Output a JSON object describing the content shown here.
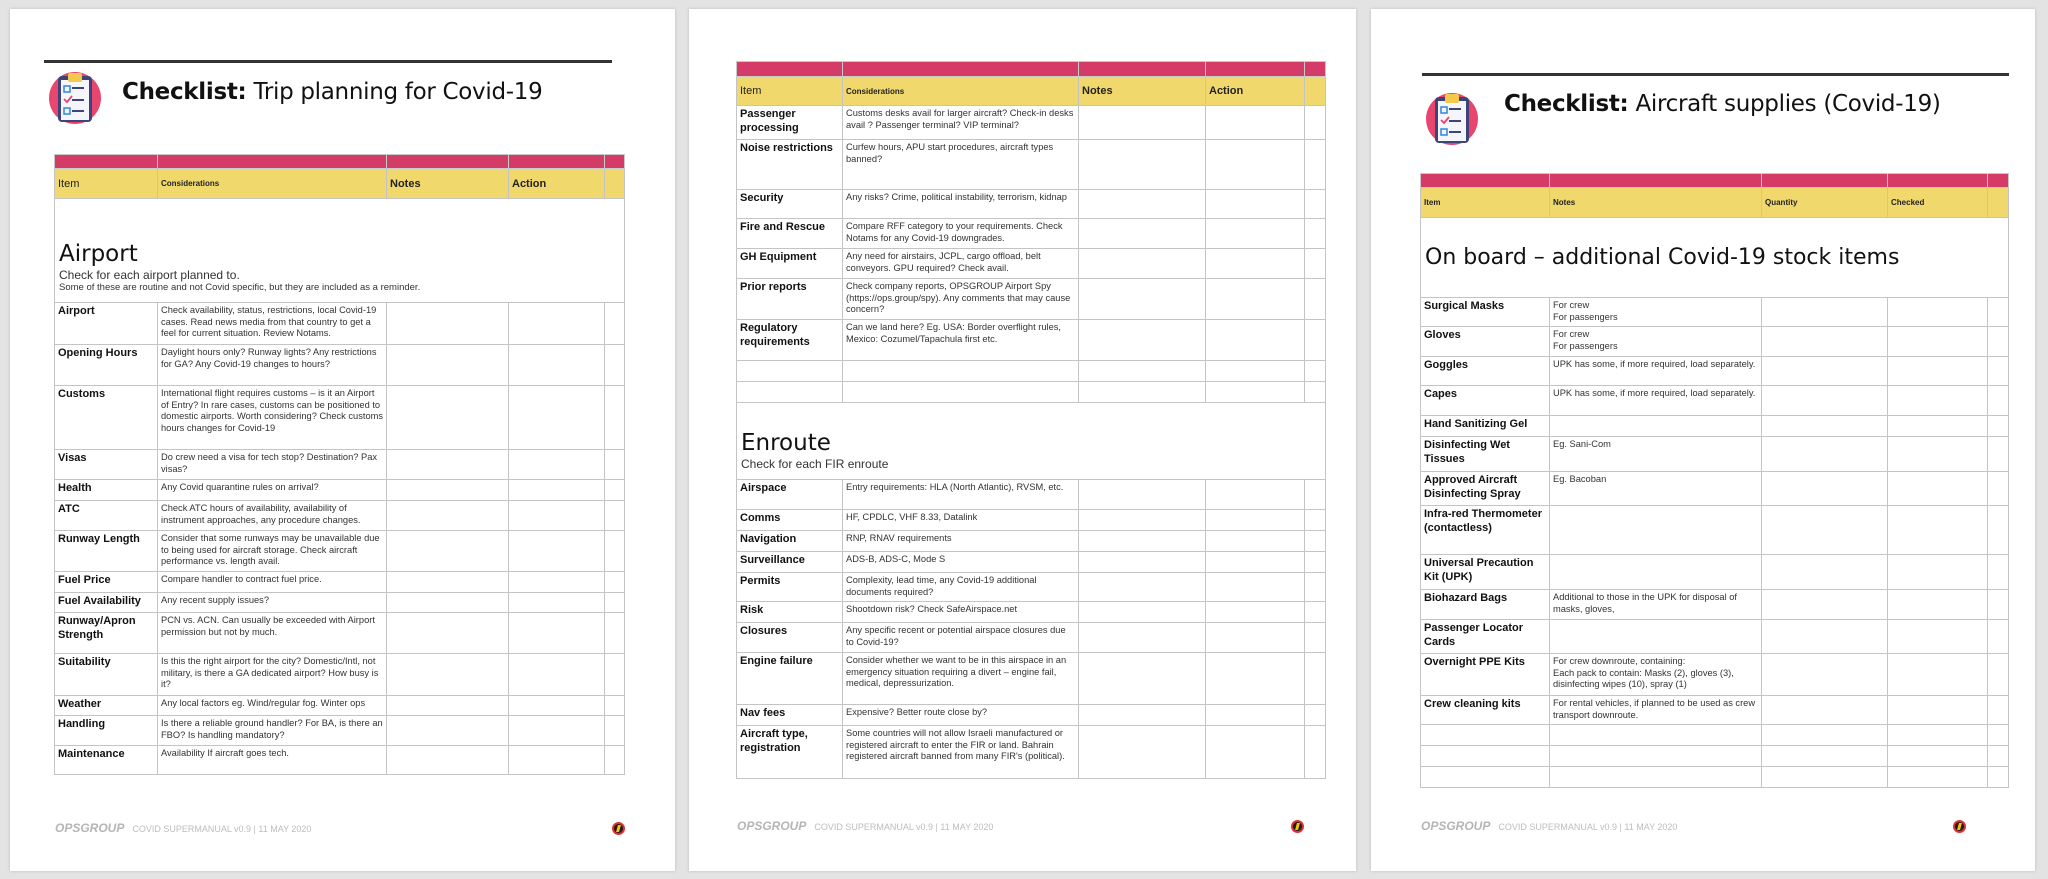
{
  "colors": {
    "header_pink": "#d43b66",
    "header_yellow": "#f1d86c",
    "background": "#e3e3e3"
  },
  "footer": {
    "brand": "OPSGROUP",
    "text": "COVID SUPERMANUAL v0.9 | 11 MAY 2020",
    "icon": "opsgroup-bolt-icon"
  },
  "pages": [
    {
      "title_bold": "Checklist:",
      "title_rest": " Trip planning for Covid-19",
      "icon": "clipboard-checklist-icon",
      "headers": [
        "Item",
        "Considerations",
        "Notes",
        "Action",
        ""
      ],
      "blocks": [
        {
          "type": "section",
          "heading": "Airport",
          "sub": "Check for each airport planned to.",
          "sub2": "Some of these are routine and not Covid specific, but they are included as a reminder."
        },
        {
          "type": "row",
          "item": "Airport",
          "text": "Check availability, status, restrictions, local Covid-19 cases. Read news media from that country to get a feel for current situation. Review Notams."
        },
        {
          "type": "row",
          "item": "Opening Hours",
          "text": "Daylight hours only? Runway lights? Any restrictions for GA? Any Covid-19 changes to hours?"
        },
        {
          "type": "row",
          "item": "Customs",
          "text": "International flight requires customs – is it an Airport of Entry? In rare cases, customs can be positioned to domestic airports. Worth considering? Check customs hours changes for Covid-19"
        },
        {
          "type": "row",
          "item": "Visas",
          "text": "Do crew need a visa for tech stop? Destination? Pax visas?"
        },
        {
          "type": "row",
          "item": "Health",
          "text": "Any Covid quarantine rules on arrival?"
        },
        {
          "type": "row",
          "item": "ATC",
          "text": "Check ATC hours of availability, availability of instrument approaches, any procedure changes."
        },
        {
          "type": "row",
          "item": "Runway Length",
          "text": "Consider that some runways may be unavailable due to being used for aircraft storage. Check aircraft performance vs. length avail."
        },
        {
          "type": "row",
          "item": "Fuel Price",
          "text": "Compare handler to contract fuel price."
        },
        {
          "type": "row",
          "item": "Fuel Availability",
          "text": "Any recent supply issues?"
        },
        {
          "type": "row",
          "item": "Runway/Apron Strength",
          "text": "PCN vs. ACN. Can usually be exceeded with Airport permission but not by much."
        },
        {
          "type": "row",
          "item": "Suitability",
          "text": "Is this the right airport for the city? Domestic/Intl, not military, is there a GA dedicated airport? How busy is it?"
        },
        {
          "type": "row",
          "item": "Weather",
          "text": "Any local factors eg. Wind/regular fog. Winter ops"
        },
        {
          "type": "row",
          "item": "Handling",
          "text": "Is there a reliable ground handler? For BA, is there an FBO? Is handling mandatory?"
        },
        {
          "type": "row",
          "item": "Maintenance",
          "text": "Availability If aircraft goes tech."
        }
      ]
    },
    {
      "title_bold": "",
      "title_rest": "",
      "headers": [
        "Item",
        "Considerations",
        "Notes",
        "Action",
        ""
      ],
      "blocks": [
        {
          "type": "row",
          "item": "Passenger processing",
          "text": "Customs desks avail for larger aircraft? Check-in desks avail ? Passenger terminal? VIP terminal?"
        },
        {
          "type": "row",
          "item": "Noise restrictions",
          "text": "Curfew hours, APU start procedures, aircraft types banned?"
        },
        {
          "type": "row",
          "item": "Security",
          "text": "Any risks? Crime, political instability, terrorism, kidnap"
        },
        {
          "type": "row",
          "item": "Fire and Rescue",
          "text": "Compare RFF category to your requirements. Check Notams for any Covid-19 downgrades."
        },
        {
          "type": "row",
          "item": "GH Equipment",
          "text": "Any need for airstairs, JCPL, cargo offload, belt conveyors. GPU required? Check avail."
        },
        {
          "type": "row",
          "item": "Prior reports",
          "text": "Check company reports, OPSGROUP Airport Spy (https://ops.group/spy). Any comments that may cause concern?"
        },
        {
          "type": "row",
          "item": "Regulatory requirements",
          "text": "Can we land here? Eg. USA: Border overflight rules, Mexico: Cozumel/Tapachula first etc."
        },
        {
          "type": "row",
          "item": "",
          "text": ""
        },
        {
          "type": "row",
          "item": "",
          "text": ""
        },
        {
          "type": "section",
          "heading": "Enroute",
          "sub": "Check for each FIR enroute",
          "sub2": ""
        },
        {
          "type": "row",
          "item": "Airspace",
          "text": "Entry  requirements: HLA (North Atlantic), RVSM, etc."
        },
        {
          "type": "row",
          "item": "Comms",
          "text": "HF, CPDLC, VHF 8.33, Datalink"
        },
        {
          "type": "row",
          "item": "Navigation",
          "text": "RNP, RNAV requirements"
        },
        {
          "type": "row",
          "item": "Surveillance",
          "text": "ADS-B, ADS-C, Mode S"
        },
        {
          "type": "row",
          "item": "Permits",
          "text": "Complexity, lead time, any Covid-19 additional documents required?"
        },
        {
          "type": "row",
          "item": "Risk",
          "text": "Shootdown risk? Check SafeAirspace.net"
        },
        {
          "type": "row",
          "item": "Closures",
          "text": "Any specific recent or potential airspace closures due to Covid-19?"
        },
        {
          "type": "row",
          "item": "Engine failure",
          "text": "Consider whether we want to be in this airspace in an emergency situation requiring a divert – engine fail, medical, depressurization."
        },
        {
          "type": "row",
          "item": "Nav fees",
          "text": "Expensive? Better route close by?"
        },
        {
          "type": "row",
          "item": "Aircraft type, registration",
          "text": "Some countries will not allow Israeli manufactured or registered aircraft to enter the FIR or land. Bahrain registered aircraft banned from many FIR's (political)."
        }
      ]
    },
    {
      "title_bold": "Checklist:",
      "title_rest": " Aircraft supplies (Covid-19)",
      "icon": "clipboard-checklist-icon",
      "headers": [
        "Item",
        "Notes",
        "Quantity",
        "Checked",
        ""
      ],
      "blocks": [
        {
          "type": "section",
          "heading": "On board – additional Covid-19 stock items",
          "sub": "",
          "sub2": ""
        },
        {
          "type": "row",
          "item": "Surgical Masks",
          "text": "For crew\nFor passengers"
        },
        {
          "type": "row",
          "item": "Gloves",
          "text": "For crew\nFor passengers"
        },
        {
          "type": "row",
          "item": "Goggles",
          "text": "UPK has some, if more required, load separately."
        },
        {
          "type": "row",
          "item": "Capes",
          "text": "UPK has some, if more required, load separately."
        },
        {
          "type": "row",
          "item": "Hand Sanitizing Gel",
          "text": ""
        },
        {
          "type": "row",
          "item": "Disinfecting Wet Tissues",
          "text": "Eg. Sani-Com"
        },
        {
          "type": "row",
          "item": "Approved Aircraft Disinfecting Spray",
          "text": "Eg. Bacoban"
        },
        {
          "type": "row",
          "item": "Infra-red Thermometer (contactless)",
          "text": ""
        },
        {
          "type": "row",
          "item": "Universal Precaution Kit (UPK)",
          "text": ""
        },
        {
          "type": "row",
          "item": "Biohazard Bags",
          "text": "Additional to those in the UPK for disposal of masks, gloves,"
        },
        {
          "type": "row",
          "item": "Passenger Locator Cards",
          "text": ""
        },
        {
          "type": "row",
          "item": "Overnight PPE Kits",
          "text": "For crew downroute, containing:\nEach pack to contain: Masks (2), gloves (3), disinfecting wipes (10), spray (1)"
        },
        {
          "type": "row",
          "item": "Crew cleaning kits",
          "text": "For rental vehicles, if planned to be used as crew transport downroute."
        },
        {
          "type": "row",
          "item": "",
          "text": ""
        },
        {
          "type": "row",
          "item": "",
          "text": ""
        },
        {
          "type": "row",
          "item": "",
          "text": ""
        }
      ]
    }
  ]
}
